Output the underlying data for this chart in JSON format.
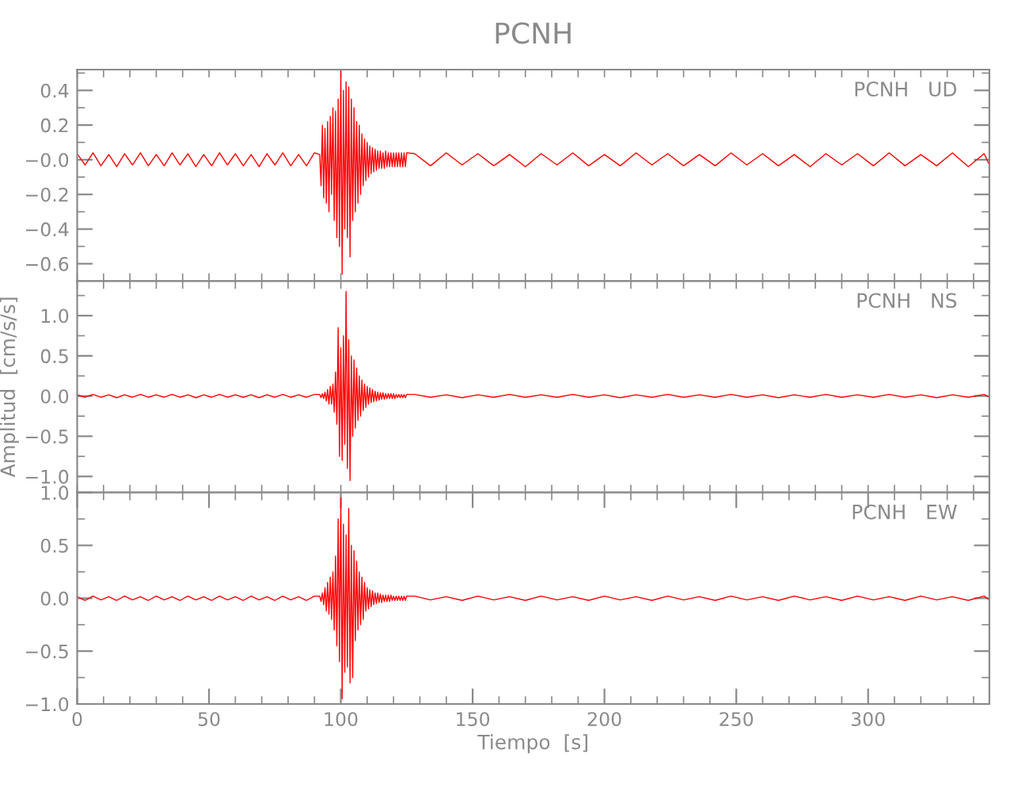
{
  "chart_data": [
    {
      "type": "line",
      "title": "PCNH",
      "annotations": [
        "PCNH   UD"
      ],
      "tick_labels": "y",
      "xlim": [
        0,
        346
      ],
      "ylim": [
        -0.7,
        0.52
      ],
      "xticks": [
        {
          "value": 0,
          "label": null
        },
        {
          "value": 10,
          "label": null
        },
        {
          "value": 20,
          "label": null
        },
        {
          "value": 30,
          "label": null
        },
        {
          "value": 40,
          "label": null
        },
        {
          "value": 50,
          "label": null
        },
        {
          "value": 60,
          "label": null
        },
        {
          "value": 70,
          "label": null
        },
        {
          "value": 80,
          "label": null
        },
        {
          "value": 90,
          "label": null
        },
        {
          "value": 100,
          "label": null
        },
        {
          "value": 110,
          "label": null
        },
        {
          "value": 120,
          "label": null
        },
        {
          "value": 130,
          "label": null
        },
        {
          "value": 140,
          "label": null
        },
        {
          "value": 150,
          "label": null
        },
        {
          "value": 160,
          "label": null
        },
        {
          "value": 170,
          "label": null
        },
        {
          "value": 180,
          "label": null
        },
        {
          "value": 190,
          "label": null
        },
        {
          "value": 200,
          "label": null
        },
        {
          "value": 210,
          "label": null
        },
        {
          "value": 220,
          "label": null
        },
        {
          "value": 230,
          "label": null
        },
        {
          "value": 240,
          "label": null
        },
        {
          "value": 250,
          "label": null
        },
        {
          "value": 260,
          "label": null
        },
        {
          "value": 270,
          "label": null
        },
        {
          "value": 280,
          "label": null
        },
        {
          "value": 290,
          "label": null
        },
        {
          "value": 300,
          "label": null
        },
        {
          "value": 310,
          "label": null
        },
        {
          "value": 320,
          "label": null
        },
        {
          "value": 330,
          "label": null
        },
        {
          "value": 340,
          "label": null
        }
      ],
      "yticks": [
        {
          "value": -0.7,
          "label": null
        },
        {
          "value": -0.6,
          "label": "−0.6"
        },
        {
          "value": -0.5,
          "label": null
        },
        {
          "value": -0.4,
          "label": "−0.4"
        },
        {
          "value": -0.3,
          "label": null
        },
        {
          "value": -0.2,
          "label": "−0.2"
        },
        {
          "value": -0.1,
          "label": null
        },
        {
          "value": 0.0,
          "label": "−0.0"
        },
        {
          "value": 0.1,
          "label": null
        },
        {
          "value": 0.2,
          "label": "0.2"
        },
        {
          "value": 0.3,
          "label": null
        },
        {
          "value": 0.4,
          "label": "0.4"
        },
        {
          "value": 0.5,
          "label": null
        }
      ],
      "series": [
        {
          "color": "#ff0000",
          "x": [
            0,
            3,
            6,
            9,
            12,
            15,
            18,
            21,
            24,
            27,
            30,
            33,
            36,
            39,
            42,
            45,
            48,
            51,
            54,
            57,
            60,
            63,
            66,
            69,
            72,
            75,
            78,
            81,
            84,
            87,
            90,
            92,
            92.5,
            93,
            93.5,
            94,
            94.5,
            95,
            95.5,
            96,
            96.5,
            97,
            97.5,
            98,
            98.5,
            99,
            99.5,
            100,
            100.5,
            101,
            101.5,
            102,
            102.5,
            103,
            103.5,
            104,
            104.5,
            105,
            105.5,
            106,
            106.5,
            107,
            107.5,
            108,
            108.5,
            109,
            109.5,
            110,
            110.5,
            111,
            111.5,
            112,
            112.5,
            113,
            113.5,
            114,
            114.5,
            115,
            115.5,
            116,
            116.5,
            117,
            117.5,
            118,
            118.5,
            119,
            119.5,
            120,
            120.5,
            121,
            121.5,
            122,
            122.5,
            123,
            123.5,
            124,
            124.5,
            125,
            128,
            134,
            140,
            146,
            152,
            158,
            164,
            170,
            176,
            182,
            188,
            194,
            200,
            206,
            212,
            218,
            224,
            230,
            236,
            242,
            248,
            254,
            260,
            266,
            272,
            278,
            284,
            290,
            296,
            302,
            308,
            314,
            320,
            326,
            332,
            338,
            344,
            346
          ],
          "values": [
            0.035,
            -0.03,
            0.04,
            -0.035,
            0.03,
            -0.04,
            0.035,
            -0.03,
            0.04,
            -0.035,
            0.03,
            -0.035,
            0.04,
            -0.03,
            0.035,
            -0.04,
            0.03,
            -0.035,
            0.04,
            -0.03,
            0.035,
            -0.035,
            0.03,
            -0.04,
            0.035,
            -0.03,
            0.04,
            -0.035,
            0.03,
            -0.035,
            0.04,
            0.03,
            -0.15,
            0.2,
            -0.22,
            0.18,
            -0.25,
            0.22,
            -0.3,
            0.25,
            -0.2,
            0.3,
            -0.35,
            0.28,
            -0.45,
            0.35,
            -0.5,
            0.52,
            -0.66,
            0.4,
            -0.4,
            0.45,
            -0.45,
            0.42,
            -0.56,
            0.35,
            -0.35,
            0.3,
            -0.3,
            0.22,
            -0.25,
            0.2,
            -0.2,
            0.15,
            -0.15,
            0.12,
            -0.12,
            0.1,
            -0.1,
            0.08,
            -0.08,
            0.07,
            -0.07,
            0.06,
            -0.06,
            0.05,
            -0.05,
            0.05,
            -0.05,
            0.04,
            -0.05,
            0.05,
            -0.04,
            0.04,
            -0.04,
            0.04,
            -0.04,
            0.04,
            -0.04,
            0.04,
            -0.04,
            0.04,
            -0.04,
            0.04,
            -0.04,
            0.04,
            -0.04,
            0.04,
            0.035,
            -0.035,
            0.04,
            -0.03,
            0.035,
            -0.035,
            0.03,
            -0.04,
            0.035,
            -0.03,
            0.04,
            -0.035,
            0.03,
            -0.035,
            0.04,
            -0.03,
            0.035,
            -0.035,
            0.03,
            -0.035,
            0.04,
            -0.03,
            0.035,
            -0.035,
            0.03,
            -0.04,
            0.035,
            -0.03,
            0.035,
            -0.035,
            0.04,
            -0.035,
            0.03,
            -0.035,
            0.04,
            -0.04,
            0.035,
            -0.03
          ]
        }
      ]
    },
    {
      "type": "line",
      "ylabel": "Amplitud  [cm/s/s]",
      "annotations": [
        "PCNH   NS"
      ],
      "tick_labels": "y",
      "xlim": [
        0,
        346
      ],
      "ylim": [
        -1.2,
        1.43
      ],
      "xticks": [
        {
          "value": 0,
          "label": null
        },
        {
          "value": 10,
          "label": null
        },
        {
          "value": 20,
          "label": null
        },
        {
          "value": 30,
          "label": null
        },
        {
          "value": 40,
          "label": null
        },
        {
          "value": 50,
          "label": null
        },
        {
          "value": 60,
          "label": null
        },
        {
          "value": 70,
          "label": null
        },
        {
          "value": 80,
          "label": null
        },
        {
          "value": 90,
          "label": null
        },
        {
          "value": 100,
          "label": null
        },
        {
          "value": 110,
          "label": null
        },
        {
          "value": 120,
          "label": null
        },
        {
          "value": 130,
          "label": null
        },
        {
          "value": 140,
          "label": null
        },
        {
          "value": 150,
          "label": null
        },
        {
          "value": 160,
          "label": null
        },
        {
          "value": 170,
          "label": null
        },
        {
          "value": 180,
          "label": null
        },
        {
          "value": 190,
          "label": null
        },
        {
          "value": 200,
          "label": null
        },
        {
          "value": 210,
          "label": null
        },
        {
          "value": 220,
          "label": null
        },
        {
          "value": 230,
          "label": null
        },
        {
          "value": 240,
          "label": null
        },
        {
          "value": 250,
          "label": null
        },
        {
          "value": 260,
          "label": null
        },
        {
          "value": 270,
          "label": null
        },
        {
          "value": 280,
          "label": null
        },
        {
          "value": 290,
          "label": null
        },
        {
          "value": 300,
          "label": null
        },
        {
          "value": 310,
          "label": null
        },
        {
          "value": 320,
          "label": null
        },
        {
          "value": 330,
          "label": null
        },
        {
          "value": 340,
          "label": null
        }
      ],
      "yticks": [
        {
          "value": -1.0,
          "label": "−1.0"
        },
        {
          "value": -0.75,
          "label": null
        },
        {
          "value": -0.5,
          "label": "−0.5"
        },
        {
          "value": -0.25,
          "label": null
        },
        {
          "value": 0.0,
          "label": "0.0"
        },
        {
          "value": 0.25,
          "label": null
        },
        {
          "value": 0.5,
          "label": "0.5"
        },
        {
          "value": 0.75,
          "label": null
        },
        {
          "value": 1.0,
          "label": "1.0"
        },
        {
          "value": 1.25,
          "label": null
        }
      ],
      "series": [
        {
          "color": "#ff0000",
          "x": [
            0,
            3,
            6,
            9,
            12,
            15,
            18,
            21,
            24,
            27,
            30,
            33,
            36,
            39,
            42,
            45,
            48,
            51,
            54,
            57,
            60,
            63,
            66,
            69,
            72,
            75,
            78,
            81,
            84,
            87,
            90,
            92,
            92.5,
            93,
            93.5,
            94,
            94.5,
            95,
            95.5,
            96,
            96.5,
            97,
            97.5,
            98,
            98.5,
            99,
            99.5,
            100,
            100.5,
            101,
            101.5,
            102,
            102.5,
            103,
            103.5,
            104,
            104.5,
            105,
            105.5,
            106,
            106.5,
            107,
            107.5,
            108,
            108.5,
            109,
            109.5,
            110,
            110.5,
            111,
            111.5,
            112,
            112.5,
            113,
            113.5,
            114,
            114.5,
            115,
            115.5,
            116,
            116.5,
            117,
            117.5,
            118,
            118.5,
            119,
            119.5,
            120,
            120.5,
            121,
            121.5,
            122,
            122.5,
            123,
            123.5,
            124,
            124.5,
            125,
            128,
            134,
            140,
            146,
            152,
            158,
            164,
            170,
            176,
            182,
            188,
            194,
            200,
            206,
            212,
            218,
            224,
            230,
            236,
            242,
            248,
            254,
            260,
            266,
            272,
            278,
            284,
            290,
            296,
            302,
            308,
            314,
            320,
            326,
            332,
            338,
            344,
            346
          ],
          "values": [
            0.015,
            -0.015,
            0.02,
            -0.015,
            0.015,
            -0.02,
            0.015,
            -0.015,
            0.02,
            -0.015,
            0.015,
            -0.015,
            0.02,
            -0.015,
            0.015,
            -0.02,
            0.015,
            -0.015,
            0.02,
            -0.015,
            0.015,
            -0.015,
            0.015,
            -0.02,
            0.015,
            -0.015,
            0.02,
            -0.015,
            0.015,
            -0.015,
            0.02,
            0.02,
            -0.02,
            0.03,
            -0.03,
            0.05,
            -0.06,
            0.08,
            -0.1,
            0.12,
            -0.1,
            0.15,
            -0.2,
            0.3,
            -0.35,
            0.85,
            -0.75,
            0.6,
            -0.8,
            0.75,
            -0.6,
            1.3,
            -0.9,
            0.7,
            -1.05,
            0.5,
            -0.5,
            0.45,
            -0.4,
            0.35,
            -0.3,
            0.25,
            -0.25,
            0.2,
            -0.18,
            0.15,
            -0.14,
            0.12,
            -0.1,
            0.1,
            -0.08,
            0.08,
            -0.07,
            0.06,
            -0.06,
            0.05,
            -0.05,
            0.04,
            -0.04,
            0.04,
            -0.04,
            0.03,
            -0.03,
            0.03,
            -0.03,
            0.03,
            -0.03,
            0.03,
            -0.03,
            0.02,
            -0.02,
            0.02,
            -0.02,
            0.02,
            -0.02,
            0.02,
            -0.02,
            0.02,
            0.02,
            -0.015,
            0.015,
            -0.02,
            0.015,
            -0.015,
            0.02,
            -0.015,
            0.015,
            -0.015,
            0.02,
            -0.015,
            0.015,
            -0.02,
            0.015,
            -0.015,
            0.02,
            -0.015,
            0.015,
            -0.015,
            0.02,
            -0.015,
            0.015,
            -0.02,
            0.015,
            -0.015,
            0.02,
            -0.015,
            0.015,
            -0.015,
            0.02,
            -0.015,
            0.015,
            -0.02,
            0.015,
            -0.015,
            0.02,
            -0.015
          ]
        }
      ]
    },
    {
      "type": "line",
      "xlabel": "Tiempo  [s]",
      "annotations": [
        "PCNH   EW"
      ],
      "xlim": [
        0,
        346
      ],
      "ylim": [
        -1.0,
        1.0
      ],
      "xticks": [
        {
          "value": 0,
          "label": "0"
        },
        {
          "value": 10,
          "label": null
        },
        {
          "value": 20,
          "label": null
        },
        {
          "value": 30,
          "label": null
        },
        {
          "value": 40,
          "label": null
        },
        {
          "value": 50,
          "label": "50"
        },
        {
          "value": 60,
          "label": null
        },
        {
          "value": 70,
          "label": null
        },
        {
          "value": 80,
          "label": null
        },
        {
          "value": 90,
          "label": null
        },
        {
          "value": 100,
          "label": "100"
        },
        {
          "value": 110,
          "label": null
        },
        {
          "value": 120,
          "label": null
        },
        {
          "value": 130,
          "label": null
        },
        {
          "value": 140,
          "label": null
        },
        {
          "value": 150,
          "label": "150"
        },
        {
          "value": 160,
          "label": null
        },
        {
          "value": 170,
          "label": null
        },
        {
          "value": 180,
          "label": null
        },
        {
          "value": 190,
          "label": null
        },
        {
          "value": 200,
          "label": "200"
        },
        {
          "value": 210,
          "label": null
        },
        {
          "value": 220,
          "label": null
        },
        {
          "value": 230,
          "label": null
        },
        {
          "value": 240,
          "label": null
        },
        {
          "value": 250,
          "label": "250"
        },
        {
          "value": 260,
          "label": null
        },
        {
          "value": 270,
          "label": null
        },
        {
          "value": 280,
          "label": null
        },
        {
          "value": 290,
          "label": null
        },
        {
          "value": 300,
          "label": "300"
        },
        {
          "value": 310,
          "label": null
        },
        {
          "value": 320,
          "label": null
        },
        {
          "value": 330,
          "label": null
        },
        {
          "value": 340,
          "label": null
        }
      ],
      "yticks": [
        {
          "value": -1.0,
          "label": "−1.0"
        },
        {
          "value": -0.75,
          "label": null
        },
        {
          "value": -0.5,
          "label": "−0.5"
        },
        {
          "value": -0.25,
          "label": null
        },
        {
          "value": 0.0,
          "label": "0.0"
        },
        {
          "value": 0.25,
          "label": null
        },
        {
          "value": 0.5,
          "label": "0.5"
        },
        {
          "value": 0.75,
          "label": null
        },
        {
          "value": 1.0,
          "label": "1.0"
        }
      ],
      "series": [
        {
          "color": "#ff0000",
          "x": [
            0,
            3,
            6,
            9,
            12,
            15,
            18,
            21,
            24,
            27,
            30,
            33,
            36,
            39,
            42,
            45,
            48,
            51,
            54,
            57,
            60,
            63,
            66,
            69,
            72,
            75,
            78,
            81,
            84,
            87,
            90,
            92,
            92.5,
            93,
            93.5,
            94,
            94.5,
            95,
            95.5,
            96,
            96.5,
            97,
            97.5,
            98,
            98.5,
            99,
            99.5,
            100,
            100.5,
            101,
            101.5,
            102,
            102.5,
            103,
            103.5,
            104,
            104.5,
            105,
            105.5,
            106,
            106.5,
            107,
            107.5,
            108,
            108.5,
            109,
            109.5,
            110,
            110.5,
            111,
            111.5,
            112,
            112.5,
            113,
            113.5,
            114,
            114.5,
            115,
            115.5,
            116,
            116.5,
            117,
            117.5,
            118,
            118.5,
            119,
            119.5,
            120,
            120.5,
            121,
            121.5,
            122,
            122.5,
            123,
            123.5,
            124,
            124.5,
            125,
            128,
            134,
            140,
            146,
            152,
            158,
            164,
            170,
            176,
            182,
            188,
            194,
            200,
            206,
            212,
            218,
            224,
            230,
            236,
            242,
            248,
            254,
            260,
            266,
            272,
            278,
            284,
            290,
            296,
            302,
            308,
            314,
            320,
            326,
            332,
            338,
            344,
            346
          ],
          "values": [
            0.015,
            -0.02,
            0.02,
            -0.015,
            0.015,
            -0.02,
            0.02,
            -0.015,
            0.015,
            -0.02,
            0.02,
            -0.015,
            0.015,
            -0.02,
            0.02,
            -0.015,
            0.015,
            -0.02,
            0.02,
            -0.015,
            0.015,
            -0.02,
            0.02,
            -0.015,
            0.015,
            -0.02,
            0.02,
            -0.015,
            0.015,
            -0.02,
            0.02,
            0.02,
            -0.03,
            0.05,
            -0.06,
            0.1,
            -0.12,
            0.15,
            -0.15,
            0.2,
            -0.2,
            0.25,
            -0.3,
            0.4,
            -0.45,
            0.75,
            -0.6,
            0.95,
            -0.95,
            0.7,
            -0.7,
            0.6,
            -0.65,
            0.85,
            -0.8,
            0.5,
            -0.75,
            0.45,
            -0.4,
            0.35,
            -0.3,
            0.25,
            -0.25,
            0.2,
            -0.2,
            0.15,
            -0.12,
            0.1,
            -0.1,
            0.08,
            -0.08,
            0.07,
            -0.06,
            0.05,
            -0.05,
            0.05,
            -0.04,
            0.04,
            -0.04,
            0.03,
            -0.03,
            0.03,
            -0.03,
            0.03,
            -0.03,
            0.03,
            -0.02,
            0.02,
            -0.02,
            0.02,
            -0.02,
            0.02,
            -0.02,
            0.02,
            -0.02,
            0.02,
            -0.02,
            0.02,
            0.02,
            -0.015,
            0.015,
            -0.02,
            0.02,
            -0.015,
            0.015,
            -0.02,
            0.02,
            -0.015,
            0.015,
            -0.02,
            0.02,
            -0.015,
            0.015,
            -0.02,
            0.02,
            -0.015,
            0.015,
            -0.02,
            0.02,
            -0.015,
            0.015,
            -0.02,
            0.02,
            -0.015,
            0.015,
            -0.02,
            0.02,
            -0.015,
            0.015,
            -0.02,
            0.02,
            -0.015,
            0.015,
            -0.02,
            0.02,
            -0.015
          ]
        }
      ]
    }
  ]
}
